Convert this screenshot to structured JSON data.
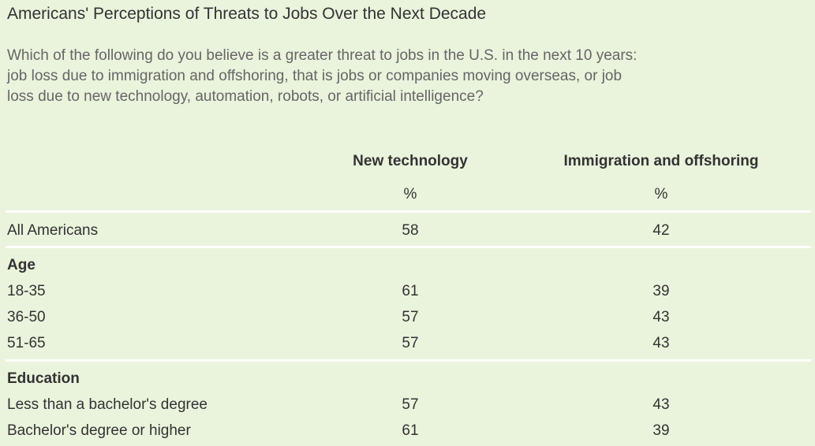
{
  "chart_data": {
    "type": "table",
    "title": "Americans' Perceptions of Threats to Jobs Over the Next Decade",
    "subtitle": "Which of the following do you believe is a greater threat to jobs in the U.S. in the next 10 years: job loss due to immigration and offshoring, that is jobs or companies moving overseas, or job loss due to new technology, automation, robots, or artificial intelligence?",
    "columns": [
      {
        "header": "New technology",
        "unit": "%"
      },
      {
        "header": "Immigration and offshoring",
        "unit": "%"
      }
    ],
    "rows": [
      {
        "group": "",
        "label": "All Americans",
        "values": [
          58,
          42
        ]
      },
      {
        "group": "Age",
        "label": "18-35",
        "values": [
          61,
          39
        ]
      },
      {
        "group": "Age",
        "label": "36-50",
        "values": [
          57,
          43
        ]
      },
      {
        "group": "Age",
        "label": "51-65",
        "values": [
          57,
          43
        ]
      },
      {
        "group": "Education",
        "label": "Less than a bachelor's degree",
        "values": [
          57,
          43
        ]
      },
      {
        "group": "Education",
        "label": "Bachelor's degree or higher",
        "values": [
          61,
          39
        ]
      }
    ],
    "groups": [
      "Age",
      "Education"
    ]
  },
  "colors": {
    "background": "#eaf3dc",
    "text": "#333333",
    "subtitle_text": "#666666",
    "rule": "#ffffff"
  }
}
